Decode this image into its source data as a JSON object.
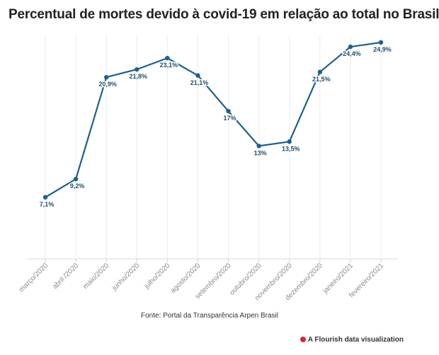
{
  "chart_data": {
    "type": "line",
    "title": "Percentual de mortes devido à covid-19 em relação ao total no Brasil",
    "categories": [
      "março/2020",
      "abril /2020",
      "maio/2020",
      "junho/2020",
      "julho/2020",
      "agosto/2020",
      "setembro/2020",
      "outubro/2020",
      "novembro/2020",
      "dezembro/2020",
      "janeiro/2021",
      "fevereiro/2021"
    ],
    "series": [
      {
        "values": [
          7.1,
          9.2,
          20.9,
          21.8,
          23.1,
          21.1,
          17,
          13,
          13.5,
          21.5,
          24.4,
          24.9
        ],
        "labels": [
          "7,1%",
          "9,2%",
          "20,9%",
          "21,8%",
          "23,1%",
          "21,1%",
          "17%",
          "13%",
          "13,5%",
          "21,5%",
          "24,4%",
          "24,9%"
        ]
      }
    ],
    "xlabel": "",
    "ylabel": "",
    "grid": true,
    "line_color": "#1f5f8b"
  },
  "footer": {
    "source": "Fonte: Portal da Transparência Arpen Brasil",
    "credit": "A Flourish data visualization"
  }
}
